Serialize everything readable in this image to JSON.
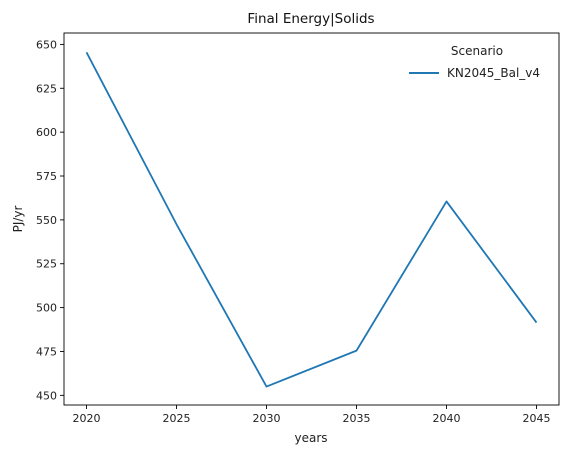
{
  "chart_data": {
    "type": "line",
    "title": "Final Energy|Solids",
    "xlabel": "years",
    "ylabel": "PJ/yr",
    "x": [
      2020,
      2025,
      2030,
      2035,
      2040,
      2045
    ],
    "x_ticks": [
      2020,
      2025,
      2030,
      2035,
      2040,
      2045
    ],
    "y_ticks": [
      450,
      475,
      500,
      525,
      550,
      575,
      600,
      625,
      650
    ],
    "xlim": [
      2018.75,
      2046.25
    ],
    "ylim": [
      444.5,
      656.5
    ],
    "grid": false,
    "legend": {
      "title": "Scenario",
      "placement": "top-right"
    },
    "series": [
      {
        "name": "KN2045_Bal_v4",
        "color": "#1f77b4",
        "values": [
          645.5,
          547.5,
          455.0,
          475.5,
          560.5,
          491.5
        ]
      }
    ]
  }
}
